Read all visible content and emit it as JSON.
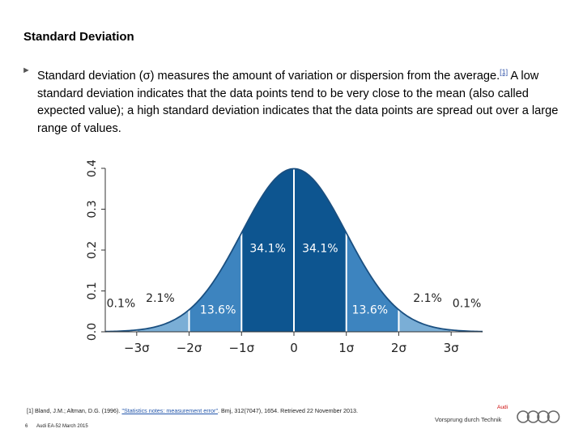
{
  "slide": {
    "title": "Standard Deviation",
    "bullet": {
      "bold_lead": "Standard deviation",
      "symbol": " (σ) measures the amount of variation or dispersion from the average.",
      "cite": "[1]",
      "rest": " A low standard deviation indicates that the data points tend to be very close to the mean (also called expected value); a high standard deviation indicates that the data points are spread out over a large range of values."
    },
    "footnote": {
      "prefix": "[1] Bland, J.M.; Altman, D.G. (1996). ",
      "link": "\"Statistics notes: measurement error\"",
      "suffix": ". Bmj, 312(7047), 1654. Retrieved 22 November 2013."
    },
    "footer": {
      "page": "6",
      "meta": "Audi EA-52  March 2015"
    },
    "brand": {
      "name": "Audi",
      "slogan": "Vorsprung durch Technik"
    }
  },
  "chart_data": {
    "type": "area",
    "title": "",
    "distribution": "standard normal",
    "x_ticks": [
      "−3σ",
      "−2σ",
      "−1σ",
      "0",
      "1σ",
      "2σ",
      "3σ"
    ],
    "x_range": [
      -3.6,
      3.6
    ],
    "y_ticks": [
      "0.0",
      "0.1",
      "0.2",
      "0.3",
      "0.4"
    ],
    "ylim": [
      0,
      0.4
    ],
    "regions": [
      {
        "from": -3,
        "to": -2,
        "label": "2.1%",
        "color": "#7aaed6"
      },
      {
        "from": -2,
        "to": -1,
        "label": "13.6%",
        "color": "#3d84bf"
      },
      {
        "from": -1,
        "to": 0,
        "label": "34.1%",
        "color": "#0d5590"
      },
      {
        "from": 0,
        "to": 1,
        "label": "34.1%",
        "color": "#0d5590"
      },
      {
        "from": 1,
        "to": 2,
        "label": "13.6%",
        "color": "#3d84bf"
      },
      {
        "from": 2,
        "to": 3,
        "label": "2.1%",
        "color": "#7aaed6"
      }
    ],
    "tails": [
      {
        "side": "left",
        "label": "0.1%"
      },
      {
        "side": "right",
        "label": "0.1%"
      }
    ]
  }
}
